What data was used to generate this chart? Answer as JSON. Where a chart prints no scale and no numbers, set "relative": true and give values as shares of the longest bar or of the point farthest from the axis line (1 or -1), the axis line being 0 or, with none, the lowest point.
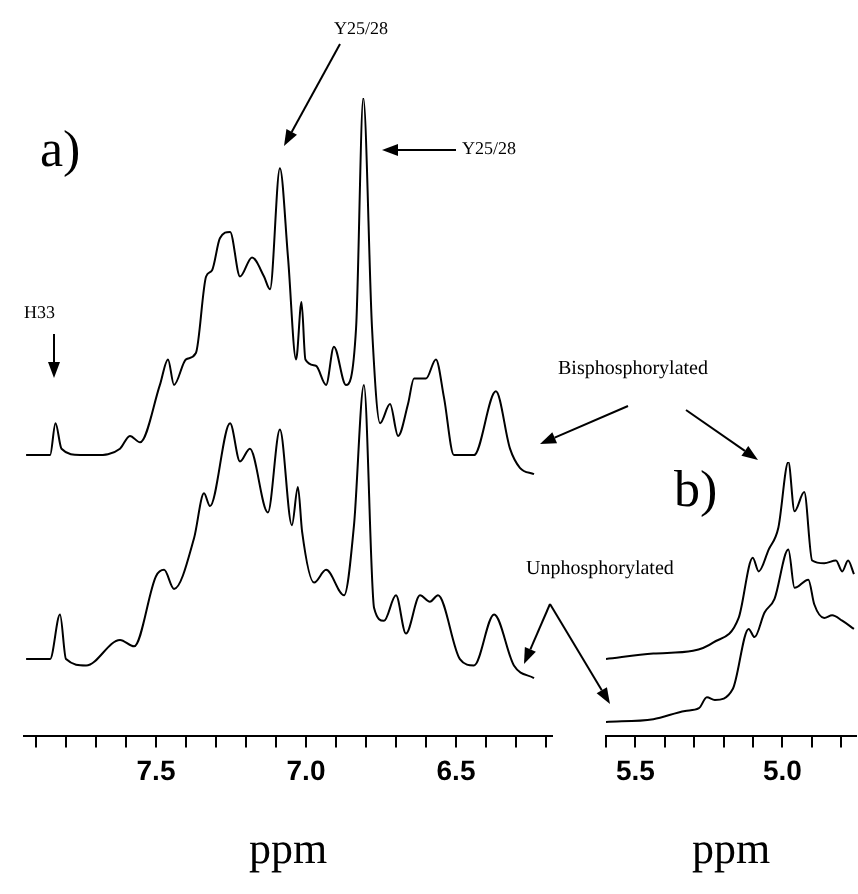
{
  "chart_data": [
    {
      "type": "line",
      "relative": true,
      "xlabel": "ppm",
      "xlim": [
        7.94,
        6.18
      ],
      "xticks": [
        {
          "value": 7.9,
          "label": null
        },
        {
          "value": 7.8,
          "label": null
        },
        {
          "value": 7.7,
          "label": null
        },
        {
          "value": 7.6,
          "label": null
        },
        {
          "value": 7.5,
          "label": "7.5"
        },
        {
          "value": 7.4,
          "label": null
        },
        {
          "value": 7.3,
          "label": null
        },
        {
          "value": 7.2,
          "label": null
        },
        {
          "value": 7.1,
          "label": null
        },
        {
          "value": 7.0,
          "label": "7.0"
        },
        {
          "value": 6.9,
          "label": null
        },
        {
          "value": 6.8,
          "label": null
        },
        {
          "value": 6.7,
          "label": null
        },
        {
          "value": 6.6,
          "label": null
        },
        {
          "value": 6.5,
          "label": "6.5"
        },
        {
          "value": 6.4,
          "label": null
        },
        {
          "value": 6.3,
          "label": null
        },
        {
          "value": 6.2,
          "label": null
        }
      ],
      "annotations": [
        "a)",
        "H33",
        "Y25/28",
        "Y25/28"
      ],
      "series": [
        {
          "color": "#000000",
          "x": [
            7.933,
            7.853,
            7.835,
            7.815,
            7.753,
            7.7,
            7.62,
            7.587,
            7.553,
            7.487,
            7.46,
            7.44,
            7.4,
            7.367,
            7.333,
            7.313,
            7.287,
            7.253,
            7.22,
            7.18,
            7.14,
            7.12,
            7.087,
            7.06,
            7.033,
            7.015,
            7.002,
            6.967,
            6.933,
            6.907,
            6.867,
            6.833,
            6.809,
            6.78,
            6.753,
            6.72,
            6.693,
            6.66,
            6.64,
            6.6,
            6.567,
            6.54,
            6.507,
            6.44,
            6.367,
            6.32,
            6.287,
            6.24
          ],
          "values": [
            0.44,
            0.44,
            0.49,
            0.45,
            0.44,
            0.44,
            0.45,
            0.47,
            0.46,
            0.55,
            0.59,
            0.55,
            0.59,
            0.6,
            0.72,
            0.73,
            0.78,
            0.79,
            0.72,
            0.75,
            0.72,
            0.7,
            0.89,
            0.75,
            0.59,
            0.68,
            0.59,
            0.58,
            0.55,
            0.61,
            0.55,
            0.64,
            1.0,
            0.64,
            0.49,
            0.52,
            0.47,
            0.52,
            0.56,
            0.56,
            0.59,
            0.53,
            0.44,
            0.44,
            0.54,
            0.45,
            0.42,
            0.41
          ]
        },
        {
          "color": "#000000",
          "x": [
            7.933,
            7.853,
            7.82,
            7.8,
            7.733,
            7.62,
            7.573,
            7.5,
            7.473,
            7.44,
            7.373,
            7.34,
            7.32,
            7.253,
            7.22,
            7.187,
            7.127,
            7.087,
            7.047,
            7.027,
            7.013,
            6.973,
            6.933,
            6.873,
            6.84,
            6.807,
            6.773,
            6.74,
            6.7,
            6.667,
            6.62,
            6.587,
            6.56,
            6.487,
            6.44,
            6.373,
            6.307,
            6.24
          ],
          "values": [
            0.12,
            0.12,
            0.19,
            0.12,
            0.11,
            0.15,
            0.14,
            0.25,
            0.26,
            0.23,
            0.31,
            0.38,
            0.36,
            0.49,
            0.43,
            0.45,
            0.35,
            0.48,
            0.33,
            0.39,
            0.32,
            0.24,
            0.26,
            0.22,
            0.33,
            0.55,
            0.2,
            0.18,
            0.22,
            0.16,
            0.22,
            0.21,
            0.22,
            0.12,
            0.11,
            0.19,
            0.11,
            0.09
          ]
        }
      ]
    },
    {
      "type": "line",
      "relative": true,
      "xlabel": "ppm",
      "xlim": [
        5.6,
        4.75
      ],
      "xticks": [
        {
          "value": 5.6,
          "label": null
        },
        {
          "value": 5.5,
          "label": "5.5"
        },
        {
          "value": 5.4,
          "label": null
        },
        {
          "value": 5.3,
          "label": null
        },
        {
          "value": 5.2,
          "label": null
        },
        {
          "value": 5.1,
          "label": null
        },
        {
          "value": 5.0,
          "label": "5.0"
        },
        {
          "value": 4.9,
          "label": null
        },
        {
          "value": 4.8,
          "label": null
        }
      ],
      "annotations": [
        "Bisphosphorylated",
        "b)",
        "Unphosphorylated"
      ],
      "series": [
        {
          "color": "#000000",
          "x": [
            5.6,
            5.439,
            5.304,
            5.236,
            5.149,
            5.101,
            5.081,
            5.047,
            5.014,
            4.98,
            4.959,
            4.926,
            4.899,
            4.858,
            4.818,
            4.797,
            4.777,
            4.757
          ],
          "values": [
            0.28,
            0.3,
            0.31,
            0.34,
            0.43,
            0.65,
            0.6,
            0.68,
            0.76,
            1.0,
            0.82,
            0.89,
            0.64,
            0.63,
            0.64,
            0.6,
            0.64,
            0.59
          ]
        },
        {
          "color": "#000000",
          "x": [
            5.6,
            5.439,
            5.331,
            5.284,
            5.257,
            5.23,
            5.169,
            5.115,
            5.095,
            5.061,
            5.027,
            4.98,
            4.959,
            4.912,
            4.892,
            4.858,
            4.831,
            4.797,
            4.757
          ],
          "values": [
            0.05,
            0.06,
            0.09,
            0.1,
            0.14,
            0.13,
            0.17,
            0.39,
            0.36,
            0.45,
            0.5,
            0.68,
            0.54,
            0.57,
            0.48,
            0.43,
            0.44,
            0.42,
            0.39
          ]
        }
      ]
    }
  ]
}
